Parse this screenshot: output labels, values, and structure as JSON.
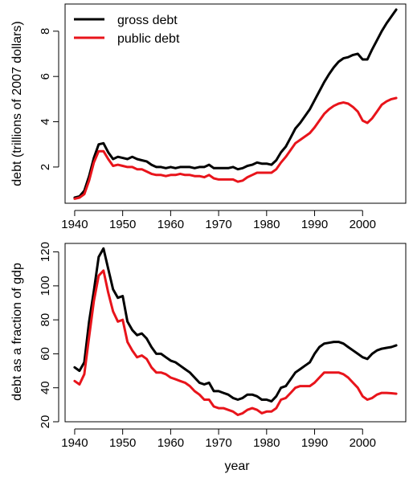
{
  "chart_data": [
    {
      "type": "line",
      "ylabel": "debt (trillions of 2007 dollars)",
      "xlabel": "",
      "xlim": [
        1938,
        2009
      ],
      "ylim": [
        0.4,
        9.2
      ],
      "xticks": [
        1940,
        1950,
        1960,
        1970,
        1980,
        1990,
        2000
      ],
      "xtick_labels": [
        "1940",
        "1950",
        "1960",
        "1970",
        "1980",
        "1990",
        "2000"
      ],
      "yticks": [
        2,
        4,
        6,
        8
      ],
      "ytick_labels": [
        "2",
        "4",
        "6",
        "8"
      ],
      "legend": {
        "placement": "top-left",
        "entries": [
          "gross debt",
          "public debt"
        ]
      },
      "grid": false,
      "series": [
        {
          "name": "gross debt",
          "color": "#000000",
          "x": [
            1940,
            1941,
            1942,
            1943,
            1944,
            1945,
            1946,
            1947,
            1948,
            1949,
            1950,
            1951,
            1952,
            1953,
            1954,
            1955,
            1956,
            1957,
            1958,
            1959,
            1960,
            1961,
            1962,
            1963,
            1964,
            1965,
            1966,
            1967,
            1968,
            1969,
            1970,
            1971,
            1972,
            1973,
            1974,
            1975,
            1976,
            1977,
            1978,
            1979,
            1980,
            1981,
            1982,
            1983,
            1984,
            1985,
            1986,
            1987,
            1988,
            1989,
            1990,
            1991,
            1992,
            1993,
            1994,
            1995,
            1996,
            1997,
            1998,
            1999,
            2000,
            2001,
            2002,
            2003,
            2004,
            2005,
            2006,
            2007
          ],
          "values": [
            0.65,
            0.7,
            0.95,
            1.6,
            2.4,
            3.0,
            3.05,
            2.65,
            2.35,
            2.45,
            2.4,
            2.35,
            2.45,
            2.35,
            2.3,
            2.25,
            2.1,
            2.0,
            2.0,
            1.95,
            2.0,
            1.95,
            2.0,
            2.0,
            2.0,
            1.95,
            2.0,
            2.0,
            2.1,
            1.95,
            1.95,
            1.95,
            1.95,
            2.0,
            1.9,
            1.95,
            2.05,
            2.1,
            2.2,
            2.15,
            2.15,
            2.1,
            2.3,
            2.65,
            2.9,
            3.3,
            3.7,
            3.95,
            4.25,
            4.55,
            4.95,
            5.35,
            5.75,
            6.1,
            6.4,
            6.65,
            6.8,
            6.85,
            6.95,
            7.0,
            6.75,
            6.75,
            7.2,
            7.6,
            8.0,
            8.35,
            8.65,
            8.95
          ]
        },
        {
          "name": "public debt",
          "color": "#e8141b",
          "x": [
            1940,
            1941,
            1942,
            1943,
            1944,
            1945,
            1946,
            1947,
            1948,
            1949,
            1950,
            1951,
            1952,
            1953,
            1954,
            1955,
            1956,
            1957,
            1958,
            1959,
            1960,
            1961,
            1962,
            1963,
            1964,
            1965,
            1966,
            1967,
            1968,
            1969,
            1970,
            1971,
            1972,
            1973,
            1974,
            1975,
            1976,
            1977,
            1978,
            1979,
            1980,
            1981,
            1982,
            1983,
            1984,
            1985,
            1986,
            1987,
            1988,
            1989,
            1990,
            1991,
            1992,
            1993,
            1994,
            1995,
            1996,
            1997,
            1998,
            1999,
            2000,
            2001,
            2002,
            2003,
            2004,
            2005,
            2006,
            2007
          ],
          "values": [
            0.6,
            0.65,
            0.8,
            1.4,
            2.2,
            2.7,
            2.7,
            2.35,
            2.05,
            2.1,
            2.05,
            2.0,
            2.0,
            1.9,
            1.9,
            1.8,
            1.7,
            1.65,
            1.65,
            1.6,
            1.65,
            1.65,
            1.7,
            1.65,
            1.65,
            1.6,
            1.6,
            1.55,
            1.65,
            1.5,
            1.45,
            1.45,
            1.45,
            1.45,
            1.35,
            1.4,
            1.55,
            1.65,
            1.75,
            1.75,
            1.75,
            1.75,
            1.9,
            2.2,
            2.45,
            2.75,
            3.05,
            3.2,
            3.35,
            3.5,
            3.75,
            4.05,
            4.35,
            4.55,
            4.7,
            4.8,
            4.85,
            4.8,
            4.65,
            4.45,
            4.05,
            3.95,
            4.15,
            4.45,
            4.75,
            4.9,
            5.0,
            5.05
          ]
        }
      ]
    },
    {
      "type": "line",
      "ylabel": "debt as a fraction of gdp",
      "xlabel": "year",
      "xlim": [
        1938,
        2009
      ],
      "ylim": [
        20,
        125
      ],
      "xticks": [
        1940,
        1950,
        1960,
        1970,
        1980,
        1990,
        2000
      ],
      "xtick_labels": [
        "1940",
        "1950",
        "1960",
        "1970",
        "1980",
        "1990",
        "2000"
      ],
      "yticks": [
        20,
        40,
        60,
        80,
        100,
        120
      ],
      "ytick_labels": [
        "20",
        "40",
        "60",
        "80",
        "100",
        "120"
      ],
      "grid": false,
      "series": [
        {
          "name": "gross debt",
          "color": "#000000",
          "x": [
            1940,
            1941,
            1942,
            1943,
            1944,
            1945,
            1946,
            1947,
            1948,
            1949,
            1950,
            1951,
            1952,
            1953,
            1954,
            1955,
            1956,
            1957,
            1958,
            1959,
            1960,
            1961,
            1962,
            1963,
            1964,
            1965,
            1966,
            1967,
            1968,
            1969,
            1970,
            1971,
            1972,
            1973,
            1974,
            1975,
            1976,
            1977,
            1978,
            1979,
            1980,
            1981,
            1982,
            1983,
            1984,
            1985,
            1986,
            1987,
            1988,
            1989,
            1990,
            1991,
            1992,
            1993,
            1994,
            1995,
            1996,
            1997,
            1998,
            1999,
            2000,
            2001,
            2002,
            2003,
            2004,
            2005,
            2006,
            2007
          ],
          "values": [
            52,
            50,
            55,
            79,
            97,
            117,
            122,
            110,
            98,
            93,
            94,
            79,
            74,
            71,
            72,
            69,
            64,
            60,
            60,
            58,
            56,
            55,
            53,
            51,
            49,
            46,
            43,
            42,
            43,
            38,
            38,
            37,
            36,
            34,
            33,
            34,
            36,
            36,
            35,
            33,
            33,
            32,
            35,
            40,
            41,
            45,
            49,
            51,
            53,
            55,
            60,
            64,
            66,
            66.5,
            67,
            67,
            66,
            64,
            62,
            60,
            58,
            57,
            60,
            62,
            63,
            63.5,
            64,
            65
          ]
        },
        {
          "name": "public debt",
          "color": "#e8141b",
          "x": [
            1940,
            1941,
            1942,
            1943,
            1944,
            1945,
            1946,
            1947,
            1948,
            1949,
            1950,
            1951,
            1952,
            1953,
            1954,
            1955,
            1956,
            1957,
            1958,
            1959,
            1960,
            1961,
            1962,
            1963,
            1964,
            1965,
            1966,
            1967,
            1968,
            1969,
            1970,
            1971,
            1972,
            1973,
            1974,
            1975,
            1976,
            1977,
            1978,
            1979,
            1980,
            1981,
            1982,
            1983,
            1984,
            1985,
            1986,
            1987,
            1988,
            1989,
            1990,
            1991,
            1992,
            1993,
            1994,
            1995,
            1996,
            1997,
            1998,
            1999,
            2000,
            2001,
            2002,
            2003,
            2004,
            2005,
            2006,
            2007
          ],
          "values": [
            44,
            42,
            48,
            70,
            91,
            106,
            109,
            96,
            85,
            79,
            80,
            67,
            62,
            58,
            59,
            57,
            52,
            49,
            49,
            48,
            46,
            45,
            44,
            43,
            41,
            38,
            36,
            33,
            33,
            29,
            28,
            28,
            27,
            26,
            24,
            25,
            27,
            28,
            27,
            25,
            26,
            26,
            28,
            33,
            34,
            37,
            40,
            41,
            41,
            41,
            43,
            46,
            49,
            49,
            49,
            49,
            48,
            46,
            43,
            40,
            35,
            33,
            34,
            36,
            37,
            37,
            36.8,
            36.5
          ]
        }
      ]
    }
  ]
}
